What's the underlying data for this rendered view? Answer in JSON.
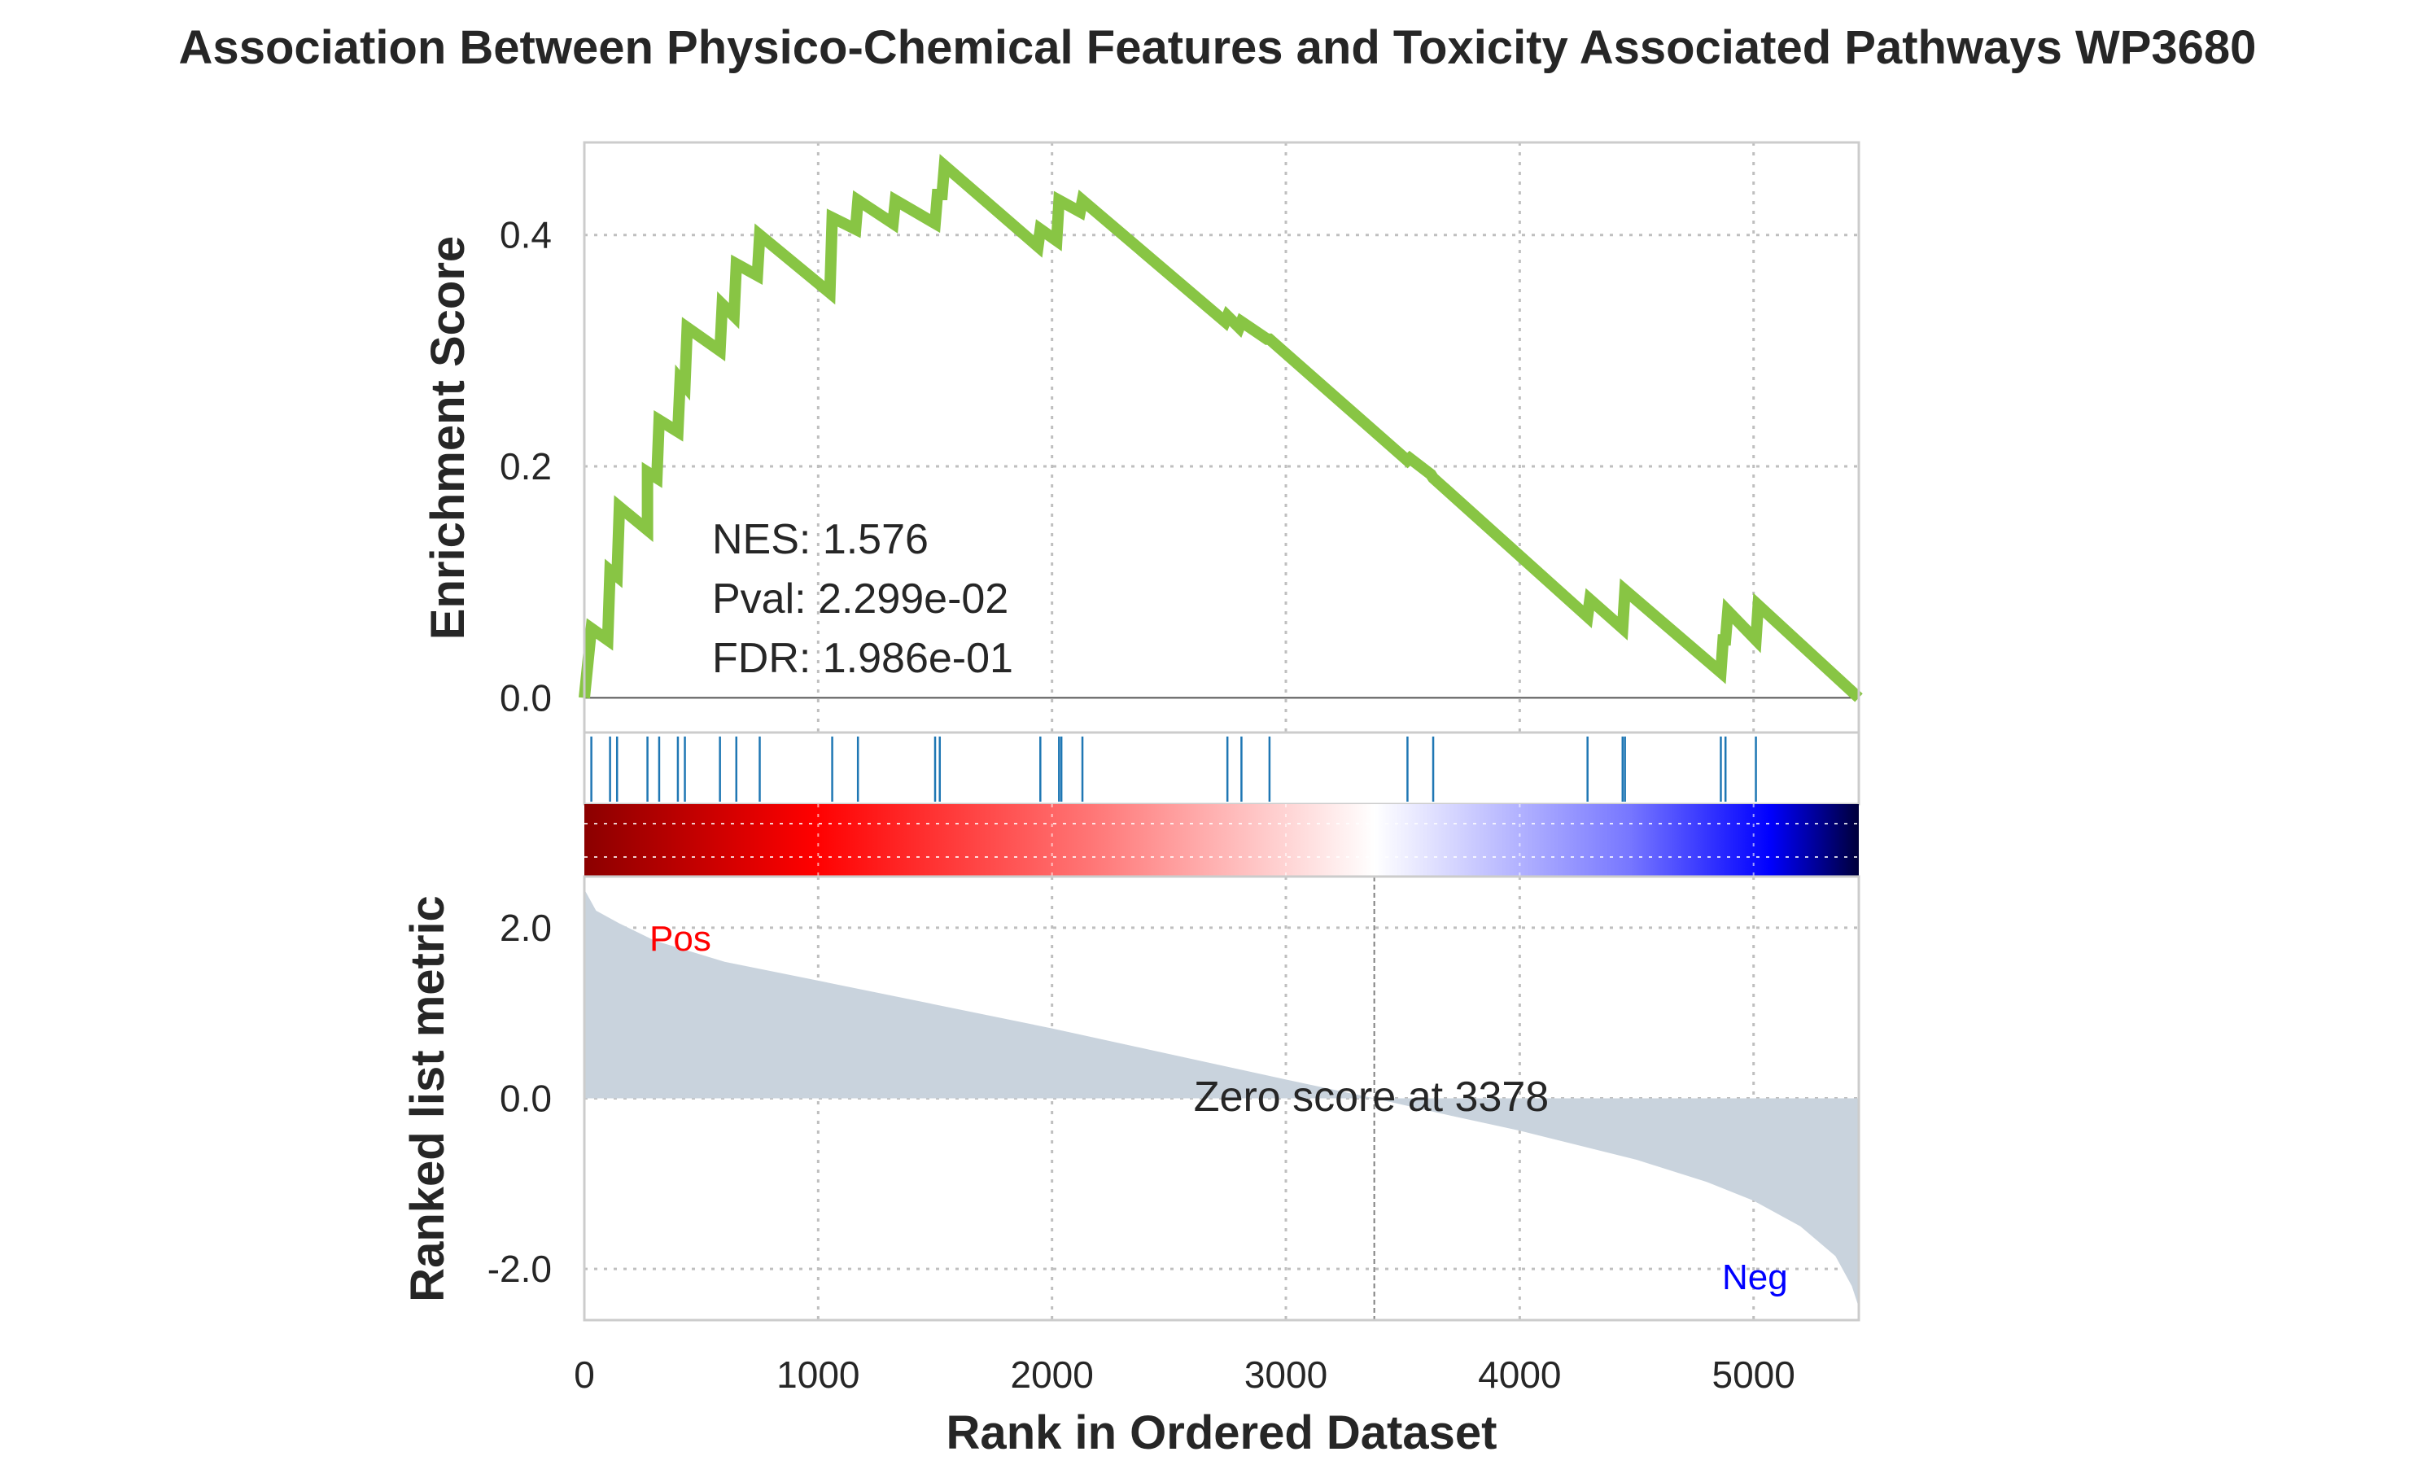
{
  "chart_data": {
    "type": "line",
    "title": "Association Between Physico-Chemical Features and Toxicity Associated Pathways WP3680",
    "xlabel": "Rank in Ordered Dataset",
    "xlim": [
      0,
      5450
    ],
    "x_ticks": [
      "0",
      "1000",
      "2000",
      "3000",
      "4000",
      "5000"
    ],
    "enrichment": {
      "ylabel": "Enrichment Score",
      "ylim": [
        -0.03,
        0.48
      ],
      "y_ticks": [
        "0.0",
        "0.2",
        "0.4"
      ],
      "line_color": "#88c544",
      "points": [
        [
          0,
          0.0
        ],
        [
          30,
          0.06
        ],
        [
          100,
          0.05
        ],
        [
          110,
          0.11
        ],
        [
          140,
          0.105
        ],
        [
          150,
          0.165
        ],
        [
          270,
          0.145
        ],
        [
          270,
          0.195
        ],
        [
          310,
          0.19
        ],
        [
          320,
          0.24
        ],
        [
          400,
          0.23
        ],
        [
          410,
          0.275
        ],
        [
          430,
          0.27
        ],
        [
          440,
          0.32
        ],
        [
          580,
          0.3
        ],
        [
          590,
          0.34
        ],
        [
          640,
          0.33
        ],
        [
          650,
          0.375
        ],
        [
          740,
          0.365
        ],
        [
          750,
          0.4
        ],
        [
          1050,
          0.35
        ],
        [
          1060,
          0.415
        ],
        [
          1160,
          0.405
        ],
        [
          1170,
          0.43
        ],
        [
          1320,
          0.41
        ],
        [
          1330,
          0.43
        ],
        [
          1500,
          0.41
        ],
        [
          1510,
          0.435
        ],
        [
          1530,
          0.435
        ],
        [
          1540,
          0.46
        ],
        [
          1940,
          0.39
        ],
        [
          1950,
          0.405
        ],
        [
          2020,
          0.395
        ],
        [
          2030,
          0.43
        ],
        [
          2120,
          0.42
        ],
        [
          2130,
          0.43
        ],
        [
          2740,
          0.325
        ],
        [
          2750,
          0.33
        ],
        [
          2800,
          0.32
        ],
        [
          2810,
          0.325
        ],
        [
          2920,
          0.31
        ],
        [
          2930,
          0.31
        ],
        [
          3520,
          0.205
        ],
        [
          3530,
          0.207
        ],
        [
          3620,
          0.193
        ],
        [
          3630,
          0.19
        ],
        [
          4290,
          0.07
        ],
        [
          4300,
          0.085
        ],
        [
          4440,
          0.06
        ],
        [
          4450,
          0.093
        ],
        [
          4860,
          0.022
        ],
        [
          4870,
          0.05
        ],
        [
          4880,
          0.05
        ],
        [
          4890,
          0.075
        ],
        [
          5010,
          0.05
        ],
        [
          5020,
          0.08
        ],
        [
          5450,
          0.0
        ]
      ],
      "annotations": [
        "NES: 1.576",
        "Pval: 2.299e-02",
        "FDR: 1.986e-01"
      ]
    },
    "hits": {
      "color": "#1f77b4",
      "positions": [
        30,
        110,
        140,
        270,
        320,
        400,
        430,
        580,
        650,
        750,
        1060,
        1170,
        1500,
        1520,
        1950,
        2030,
        2040,
        2130,
        2750,
        2810,
        2930,
        3520,
        3630,
        4290,
        4440,
        4450,
        4860,
        4880,
        5010
      ]
    },
    "ranked_metric": {
      "ylabel": "Ranked list metric",
      "ylim": [
        -2.6,
        2.6
      ],
      "y_ticks": [
        "-2.0",
        "0.0",
        "2.0"
      ],
      "fill_color": "#c9d3dd",
      "points": [
        [
          0,
          2.45
        ],
        [
          50,
          2.2
        ],
        [
          150,
          2.05
        ],
        [
          300,
          1.85
        ],
        [
          600,
          1.6
        ],
        [
          1000,
          1.38
        ],
        [
          1500,
          1.1
        ],
        [
          2000,
          0.82
        ],
        [
          2500,
          0.52
        ],
        [
          3000,
          0.22
        ],
        [
          3378,
          0.0
        ],
        [
          3700,
          -0.2
        ],
        [
          4000,
          -0.38
        ],
        [
          4500,
          -0.72
        ],
        [
          4800,
          -0.98
        ],
        [
          5000,
          -1.2
        ],
        [
          5200,
          -1.5
        ],
        [
          5350,
          -1.85
        ],
        [
          5420,
          -2.2
        ],
        [
          5450,
          -2.45
        ]
      ],
      "pos_label": "Pos",
      "neg_label": "Neg",
      "pos_color": "#ff0000",
      "neg_color": "#0000ff",
      "zero_cross_rank": 3378,
      "zero_label": "Zero score at 3378"
    }
  }
}
